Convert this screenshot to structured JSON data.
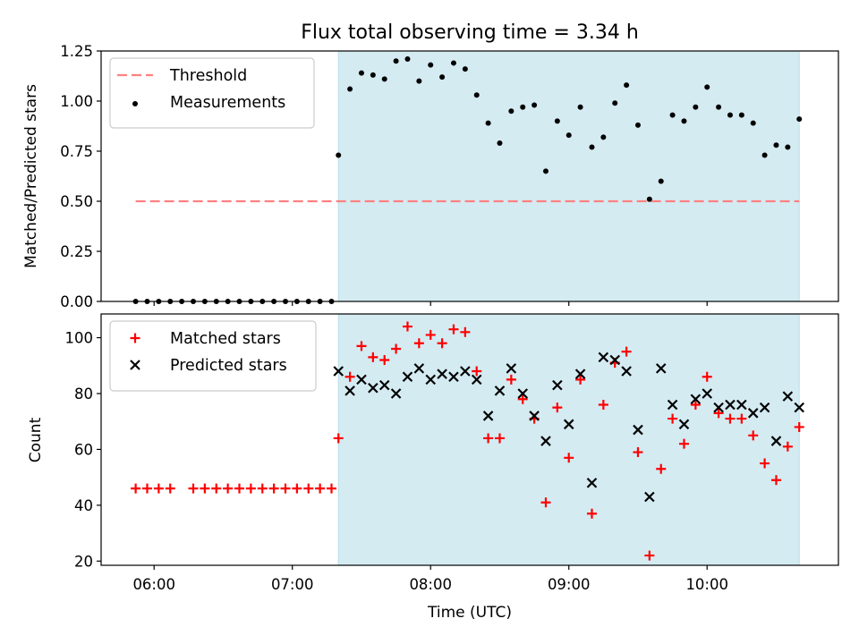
{
  "chart_data": [
    {
      "type": "scatter",
      "title": "Flux total observing time = 3.34 h",
      "xlabel": "",
      "ylabel": "Matched/Predicted stars",
      "xlim": [
        "05:37",
        "10:57"
      ],
      "ylim": [
        0,
        1.25
      ],
      "yticks": [
        0.0,
        0.25,
        0.5,
        0.75,
        1.0,
        1.25
      ],
      "ytick_labels": [
        "0.00",
        "0.25",
        "0.50",
        "0.75",
        "1.00",
        "1.25"
      ],
      "xticks": [
        "06:00",
        "07:00",
        "08:00",
        "09:00",
        "10:00"
      ],
      "legend_position": "upper-left",
      "shaded_span": {
        "x0": "07:20",
        "x1": "10:40",
        "color": "#add8e6"
      },
      "threshold": {
        "name": "Threshold",
        "y": 0.5,
        "x0": "05:52",
        "x1": "10:40",
        "color": "#ff8080",
        "style": "dashed"
      },
      "series": [
        {
          "name": "Measurements",
          "marker": "dot",
          "color": "#000000",
          "points": [
            [
              "05:52",
              0.0
            ],
            [
              "05:57",
              0.0
            ],
            [
              "06:02",
              0.0
            ],
            [
              "06:07",
              0.0
            ],
            [
              "06:12",
              0.0
            ],
            [
              "06:17",
              0.0
            ],
            [
              "06:22",
              0.0
            ],
            [
              "06:27",
              0.0
            ],
            [
              "06:32",
              0.0
            ],
            [
              "06:37",
              0.0
            ],
            [
              "06:42",
              0.0
            ],
            [
              "06:47",
              0.0
            ],
            [
              "06:52",
              0.0
            ],
            [
              "06:57",
              0.0
            ],
            [
              "07:02",
              0.0
            ],
            [
              "07:07",
              0.0
            ],
            [
              "07:12",
              0.0
            ],
            [
              "07:17",
              0.0
            ],
            [
              "07:20",
              0.73
            ],
            [
              "07:25",
              1.06
            ],
            [
              "07:30",
              1.14
            ],
            [
              "07:35",
              1.13
            ],
            [
              "07:40",
              1.11
            ],
            [
              "07:45",
              1.2
            ],
            [
              "07:50",
              1.21
            ],
            [
              "07:55",
              1.1
            ],
            [
              "08:00",
              1.18
            ],
            [
              "08:05",
              1.12
            ],
            [
              "08:10",
              1.19
            ],
            [
              "08:15",
              1.16
            ],
            [
              "08:20",
              1.03
            ],
            [
              "08:25",
              0.89
            ],
            [
              "08:30",
              0.79
            ],
            [
              "08:35",
              0.95
            ],
            [
              "08:40",
              0.97
            ],
            [
              "08:45",
              0.98
            ],
            [
              "08:50",
              0.65
            ],
            [
              "08:55",
              0.9
            ],
            [
              "09:00",
              0.83
            ],
            [
              "09:05",
              0.97
            ],
            [
              "09:10",
              0.77
            ],
            [
              "09:15",
              0.82
            ],
            [
              "09:20",
              0.99
            ],
            [
              "09:25",
              1.08
            ],
            [
              "09:30",
              0.88
            ],
            [
              "09:35",
              0.51
            ],
            [
              "09:40",
              0.6
            ],
            [
              "09:45",
              0.93
            ],
            [
              "09:50",
              0.9
            ],
            [
              "09:55",
              0.97
            ],
            [
              "10:00",
              1.07
            ],
            [
              "10:05",
              0.97
            ],
            [
              "10:10",
              0.93
            ],
            [
              "10:15",
              0.93
            ],
            [
              "10:20",
              0.89
            ],
            [
              "10:25",
              0.73
            ],
            [
              "10:30",
              0.78
            ],
            [
              "10:35",
              0.77
            ],
            [
              "10:40",
              0.91
            ]
          ]
        }
      ]
    },
    {
      "type": "scatter",
      "title": "",
      "xlabel": "Time (UTC)",
      "ylabel": "Count",
      "xlim": [
        "05:37",
        "10:57"
      ],
      "ylim": [
        18.5,
        108.5
      ],
      "yticks": [
        20,
        40,
        60,
        80,
        100
      ],
      "ytick_labels": [
        "20",
        "40",
        "60",
        "80",
        "100"
      ],
      "xticks": [
        "06:00",
        "07:00",
        "08:00",
        "09:00",
        "10:00"
      ],
      "legend_position": "upper-left",
      "shaded_span": {
        "x0": "07:20",
        "x1": "10:40",
        "color": "#add8e6"
      },
      "series": [
        {
          "name": "Matched stars",
          "marker": "plus",
          "color": "#ff0000",
          "points": [
            [
              "05:52",
              46
            ],
            [
              "05:57",
              46
            ],
            [
              "06:02",
              46
            ],
            [
              "06:07",
              46
            ],
            [
              "06:17",
              46
            ],
            [
              "06:22",
              46
            ],
            [
              "06:27",
              46
            ],
            [
              "06:32",
              46
            ],
            [
              "06:37",
              46
            ],
            [
              "06:42",
              46
            ],
            [
              "06:47",
              46
            ],
            [
              "06:52",
              46
            ],
            [
              "06:57",
              46
            ],
            [
              "07:02",
              46
            ],
            [
              "07:07",
              46
            ],
            [
              "07:12",
              46
            ],
            [
              "07:17",
              46
            ],
            [
              "07:20",
              64
            ],
            [
              "07:25",
              86
            ],
            [
              "07:30",
              97
            ],
            [
              "07:35",
              93
            ],
            [
              "07:40",
              92
            ],
            [
              "07:45",
              96
            ],
            [
              "07:50",
              104
            ],
            [
              "07:55",
              98
            ],
            [
              "08:00",
              101
            ],
            [
              "08:05",
              98
            ],
            [
              "08:10",
              103
            ],
            [
              "08:15",
              102
            ],
            [
              "08:20",
              88
            ],
            [
              "08:25",
              64
            ],
            [
              "08:30",
              64
            ],
            [
              "08:35",
              85
            ],
            [
              "08:40",
              78
            ],
            [
              "08:45",
              71
            ],
            [
              "08:50",
              41
            ],
            [
              "08:55",
              75
            ],
            [
              "09:00",
              57
            ],
            [
              "09:05",
              85
            ],
            [
              "09:10",
              37
            ],
            [
              "09:15",
              76
            ],
            [
              "09:20",
              91
            ],
            [
              "09:25",
              95
            ],
            [
              "09:30",
              59
            ],
            [
              "09:35",
              22
            ],
            [
              "09:40",
              53
            ],
            [
              "09:45",
              71
            ],
            [
              "09:50",
              62
            ],
            [
              "09:55",
              76
            ],
            [
              "10:00",
              86
            ],
            [
              "10:05",
              73
            ],
            [
              "10:10",
              71
            ],
            [
              "10:15",
              71
            ],
            [
              "10:20",
              65
            ],
            [
              "10:25",
              55
            ],
            [
              "10:30",
              49
            ],
            [
              "10:35",
              61
            ],
            [
              "10:40",
              68
            ]
          ]
        },
        {
          "name": "Predicted stars",
          "marker": "x",
          "color": "#000000",
          "points": [
            [
              "07:20",
              88
            ],
            [
              "07:25",
              81
            ],
            [
              "07:30",
              85
            ],
            [
              "07:35",
              82
            ],
            [
              "07:40",
              83
            ],
            [
              "07:45",
              80
            ],
            [
              "07:50",
              86
            ],
            [
              "07:55",
              89
            ],
            [
              "08:00",
              85
            ],
            [
              "08:05",
              87
            ],
            [
              "08:10",
              86
            ],
            [
              "08:15",
              88
            ],
            [
              "08:20",
              85
            ],
            [
              "08:25",
              72
            ],
            [
              "08:30",
              81
            ],
            [
              "08:35",
              89
            ],
            [
              "08:40",
              80
            ],
            [
              "08:45",
              72
            ],
            [
              "08:50",
              63
            ],
            [
              "08:55",
              83
            ],
            [
              "09:00",
              69
            ],
            [
              "09:05",
              87
            ],
            [
              "09:10",
              48
            ],
            [
              "09:15",
              93
            ],
            [
              "09:20",
              92
            ],
            [
              "09:25",
              88
            ],
            [
              "09:30",
              67
            ],
            [
              "09:35",
              43
            ],
            [
              "09:40",
              89
            ],
            [
              "09:45",
              76
            ],
            [
              "09:50",
              69
            ],
            [
              "09:55",
              78
            ],
            [
              "10:00",
              80
            ],
            [
              "10:05",
              75
            ],
            [
              "10:10",
              76
            ],
            [
              "10:15",
              76
            ],
            [
              "10:20",
              73
            ],
            [
              "10:25",
              75
            ],
            [
              "10:30",
              63
            ],
            [
              "10:35",
              79
            ],
            [
              "10:40",
              75
            ]
          ]
        }
      ]
    }
  ]
}
